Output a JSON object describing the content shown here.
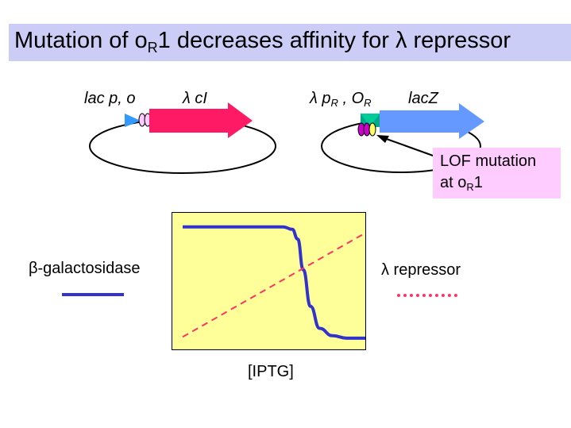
{
  "title": {
    "prefix": "Mutation of o",
    "sub": "R",
    "suffix": "1 decreases affinity for λ repressor"
  },
  "plasmid1": {
    "promoter_label": "lac p, o",
    "gene_label": "λ cI"
  },
  "plasmid2": {
    "promoter_label_a": "λ p",
    "promoter_label_sub_a": "R",
    "promoter_label_b": " , O",
    "promoter_label_sub_b": "R",
    "gene_label": "lacZ"
  },
  "callout": {
    "line1": "LOF mutation",
    "line2_prefix": "at o",
    "line2_sub": "R",
    "line2_suffix": "1"
  },
  "legend": {
    "left_label": "β-galactosidase",
    "right_label": "λ repressor"
  },
  "chart_data": {
    "type": "line",
    "xlabel": "[IPTG]",
    "series": [
      {
        "name": "β-galactosidase",
        "style": "solid",
        "color": "#3333cc",
        "x": [
          0.0,
          0.35,
          0.55,
          0.6,
          0.63,
          0.66,
          0.7,
          0.75,
          0.82,
          0.9,
          1.0
        ],
        "y": [
          0.95,
          0.95,
          0.95,
          0.93,
          0.85,
          0.6,
          0.3,
          0.12,
          0.06,
          0.04,
          0.04
        ]
      },
      {
        "name": "λ repressor",
        "style": "dashed",
        "color": "#ff3366",
        "x": [
          0.0,
          1.0
        ],
        "y": [
          0.05,
          0.9
        ]
      }
    ]
  },
  "colors": {
    "title_bg": "#cccdf7",
    "arrow_cI": "#ff1a66",
    "arrow_lacZ": "#6699ff",
    "plot_bg": "#ffff99",
    "callout_bg": "#ffccff"
  }
}
